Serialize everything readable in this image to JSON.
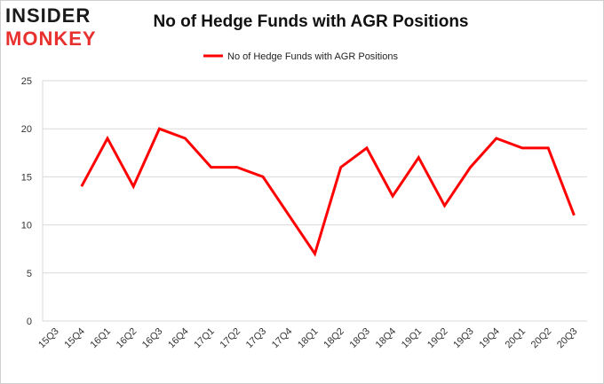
{
  "logo": {
    "line1": "INSIDER",
    "line2": "MONKEY"
  },
  "colors": {
    "series": "#ff0000",
    "grid": "#d9d9d9",
    "logo_red": "#e8312f"
  },
  "chart_data": {
    "type": "line",
    "title": "No of Hedge Funds with AGR Positions",
    "xlabel": "",
    "ylabel": "",
    "ylim": [
      0,
      25
    ],
    "yticks": [
      0,
      5,
      10,
      15,
      20,
      25
    ],
    "grid": true,
    "legend_position": "top-center",
    "categories": [
      "15Q3",
      "15Q4",
      "16Q1",
      "16Q2",
      "16Q3",
      "16Q4",
      "17Q1",
      "17Q2",
      "17Q3",
      "17Q4",
      "18Q1",
      "18Q2",
      "18Q3",
      "18Q4",
      "19Q1",
      "19Q2",
      "19Q3",
      "19Q4",
      "20Q1",
      "20Q2",
      "20Q3"
    ],
    "series": [
      {
        "name": "No of Hedge Funds with AGR Positions",
        "values": [
          null,
          14,
          19,
          14,
          20,
          19,
          16,
          16,
          15,
          11,
          7,
          16,
          18,
          13,
          17,
          12,
          16,
          19,
          18,
          18,
          11
        ]
      }
    ]
  }
}
